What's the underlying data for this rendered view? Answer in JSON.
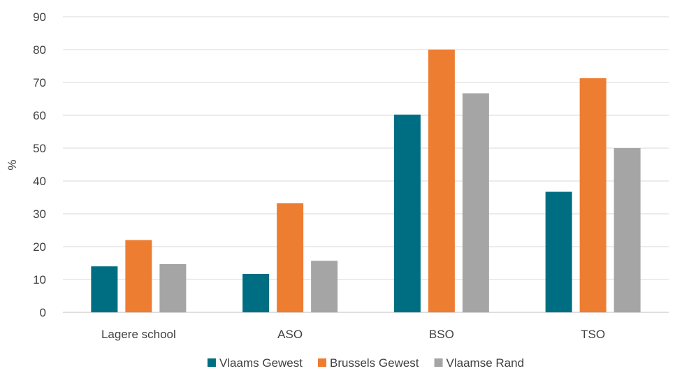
{
  "chart_data": {
    "type": "bar",
    "categories": [
      "Lagere school",
      "ASO",
      "BSO",
      "TSO"
    ],
    "series": [
      {
        "name": "Vlaams Gewest",
        "color": "#006E82",
        "values": [
          14.0,
          11.7,
          60.2,
          36.7
        ]
      },
      {
        "name": "Brussels Gewest",
        "color": "#ED7D31",
        "values": [
          22.0,
          33.2,
          80.0,
          71.3
        ]
      },
      {
        "name": "Vlaamse Rand",
        "color": "#A5A5A5",
        "values": [
          14.7,
          15.7,
          66.7,
          50.0
        ]
      }
    ],
    "ylabel": "%",
    "ylim": [
      0,
      90
    ],
    "yticks": [
      0,
      10,
      20,
      30,
      40,
      50,
      60,
      70,
      80,
      90
    ],
    "grid": true,
    "legend": "bottom"
  }
}
